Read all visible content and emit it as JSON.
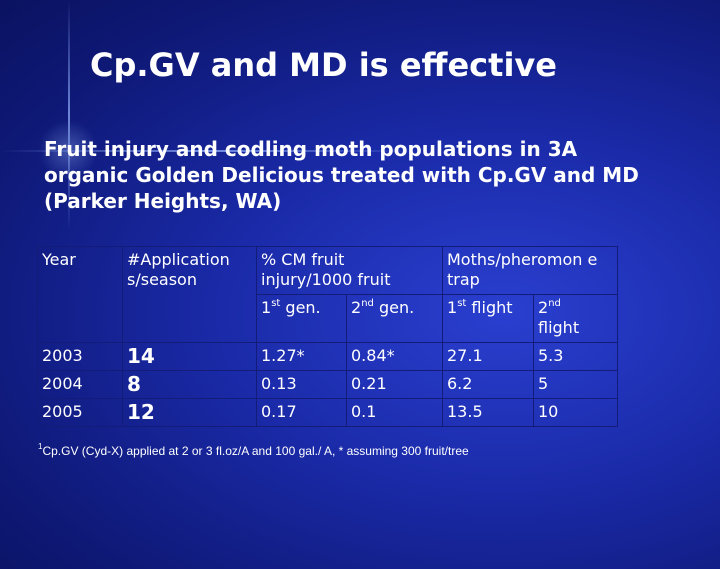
{
  "slide": {
    "title": "Cp.GV and MD is effective",
    "subtitle": "Fruit injury and codling moth populations in 3A organic Golden Delicious treated with Cp.GV and MD (Parker Heights, WA)"
  },
  "table": {
    "headers": {
      "year": "Year",
      "applications": "#Application s/season",
      "cm_fruit": "% CM fruit injury/1000 fruit",
      "moths": "Moths/pheromon e trap"
    },
    "subheaders": {
      "gen1_num": "1",
      "gen1_sup": "st",
      "gen1_word": " gen.",
      "gen2_num": "2",
      "gen2_sup": "nd",
      "gen2_word": " gen.",
      "flight1_num": "1",
      "flight1_sup": "st",
      "flight1_word": " flight",
      "flight2_num": "2",
      "flight2_sup": "nd",
      "flight2_word": "flight"
    },
    "rows": [
      {
        "year": "2003",
        "applications": "14",
        "gen1": "1.27*",
        "gen2": "0.84*",
        "flight1": "27.1",
        "flight2": "5.3"
      },
      {
        "year": "2004",
        "applications": "8",
        "gen1": "0.13",
        "gen2": "0.21",
        "flight1": "6.2",
        "flight2": "5"
      },
      {
        "year": "2005",
        "applications": "12",
        "gen1": "0.17",
        "gen2": "0.1",
        "flight1": "13.5",
        "flight2": "10"
      }
    ]
  },
  "footnote": {
    "marker": "1",
    "text": "Cp.GV (Cyd-X) applied at 2 or 3 fl.oz/A and 100 gal./ A, * assuming 300 fruit/tree"
  }
}
